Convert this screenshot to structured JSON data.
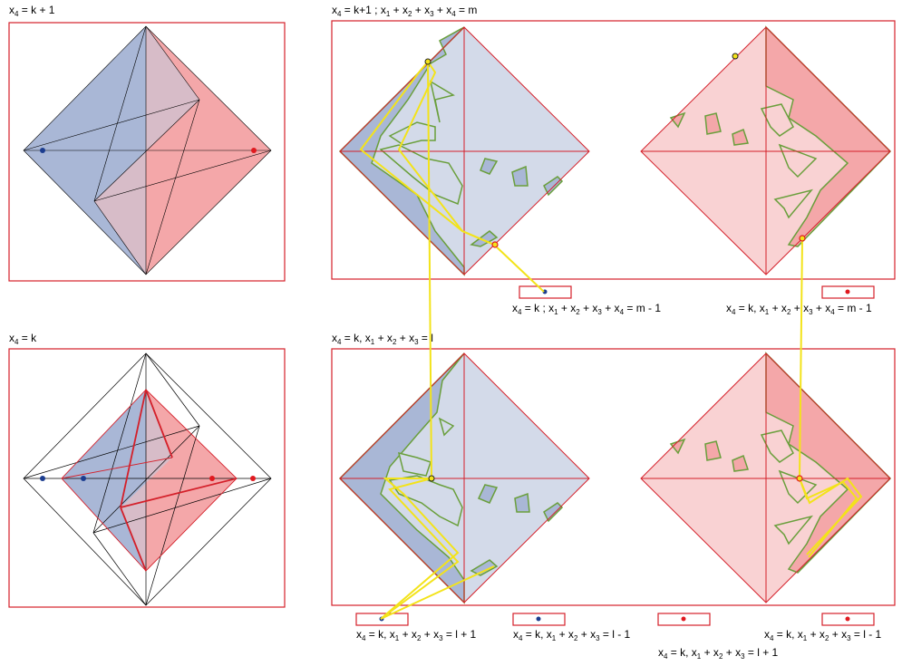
{
  "labels": {
    "top_left": {
      "x": "x",
      "sub": "4",
      "rest": " = k + 1"
    },
    "bottom_left": {
      "x": "x",
      "sub": "4",
      "rest": " = k"
    },
    "top_right": {
      "parts": [
        [
          "x",
          "4",
          " = k+1 ;  x"
        ],
        [
          "1",
          " + x"
        ],
        [
          "2",
          " + x"
        ],
        [
          "3",
          " + x"
        ],
        [
          "4",
          " = m"
        ]
      ]
    },
    "bottom_right": {
      "parts": [
        [
          "x",
          "4",
          " = k, x"
        ],
        [
          "1",
          " + x"
        ],
        [
          "2",
          " + x"
        ],
        [
          "3",
          " = l"
        ]
      ]
    },
    "cap_blue_top": {
      "parts": [
        [
          "x",
          "4",
          " = k ;  x"
        ],
        [
          "1",
          " + x"
        ],
        [
          "2",
          " + x"
        ],
        [
          "3",
          " + x"
        ],
        [
          "4",
          " = m - 1"
        ]
      ]
    },
    "cap_red_top": {
      "parts": [
        [
          "x",
          "4",
          " = k, x"
        ],
        [
          "1",
          " + x"
        ],
        [
          "2",
          " + x"
        ],
        [
          "3",
          " + x"
        ],
        [
          "4",
          " = m - 1"
        ]
      ]
    },
    "cap_b1": {
      "parts": [
        [
          "x",
          "4",
          " = k, x"
        ],
        [
          "1",
          " + x"
        ],
        [
          "2",
          " + x"
        ],
        [
          "3",
          " = l + 1"
        ]
      ]
    },
    "cap_b2": {
      "parts": [
        [
          "x",
          "4",
          " = k, x"
        ],
        [
          "1",
          " + x"
        ],
        [
          "2",
          " + x"
        ],
        [
          "3",
          " = l - 1"
        ]
      ]
    },
    "cap_b3": {
      "parts": [
        [
          "x",
          "4",
          " = k, x"
        ],
        [
          "1",
          " + x"
        ],
        [
          "2",
          " + x"
        ],
        [
          "3",
          " = l + 1"
        ]
      ]
    },
    "cap_b4": {
      "parts": [
        [
          "x",
          "4",
          " = k, x"
        ],
        [
          "1",
          " + x"
        ],
        [
          "2",
          " + x"
        ],
        [
          "3",
          " = l - 1"
        ]
      ]
    }
  },
  "colors": {
    "blue_fill": "#a9b7d6",
    "light_blue_fill": "#d3dae9",
    "red_fill": "#f4a7a9",
    "light_red_fill": "#f9d2d3",
    "frame": "#d4202a",
    "green": "#6a9f3c",
    "yellow": "#f3e31a",
    "dot_blue": "#1c3d8f",
    "dot_red": "#e0191f"
  }
}
